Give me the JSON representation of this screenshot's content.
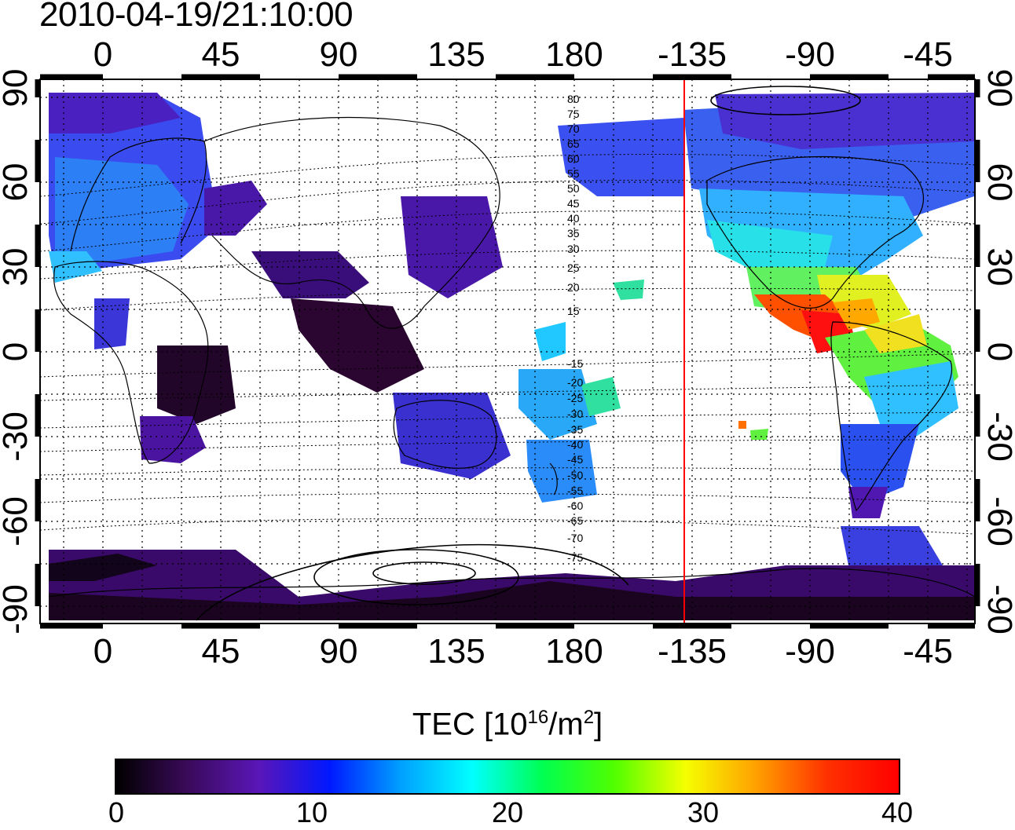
{
  "title": "2010-04-19/21:10:00",
  "map": {
    "x_ticks": [
      "0",
      "45",
      "90",
      "135",
      "180",
      "-135",
      "-90",
      "-45"
    ],
    "x_tick_values_lon": [
      0,
      45,
      90,
      135,
      180,
      225,
      270,
      315
    ],
    "y_ticks": [
      "90",
      "60",
      "30",
      "0",
      "-30",
      "-60",
      "-90"
    ],
    "y_tick_values_lat": [
      90,
      60,
      30,
      0,
      -30,
      -60,
      -90
    ],
    "lon_range": [
      -25,
      335
    ],
    "lat_range": [
      -90,
      90
    ],
    "grid": "dotted",
    "terminator_lon": 222,
    "terminator_color": "#ff0000",
    "contour_labels": [
      "80",
      "75",
      "70",
      "65",
      "60",
      "55",
      "50",
      "45",
      "40",
      "35",
      "30",
      "25",
      "20",
      "15",
      "-15",
      "-20",
      "-25",
      "-30",
      "-35",
      "-40",
      "-45",
      "-50",
      "-55",
      "-60",
      "-65",
      "-70",
      "-75"
    ]
  },
  "colorbar": {
    "title_main": "TEC  [10",
    "title_exp": "16",
    "title_mid": "/m",
    "title_exp2": "2",
    "title_end": "]",
    "ticks": [
      "0",
      "10",
      "20",
      "30",
      "40"
    ],
    "min": 0,
    "max": 40,
    "colors": [
      "#000000",
      "#3a0a5a",
      "#5a16b8",
      "#0018ff",
      "#00a0ff",
      "#00ffff",
      "#00ff50",
      "#50ff00",
      "#f5ff00",
      "#ffa000",
      "#ff3000",
      "#ff0000"
    ]
  }
}
